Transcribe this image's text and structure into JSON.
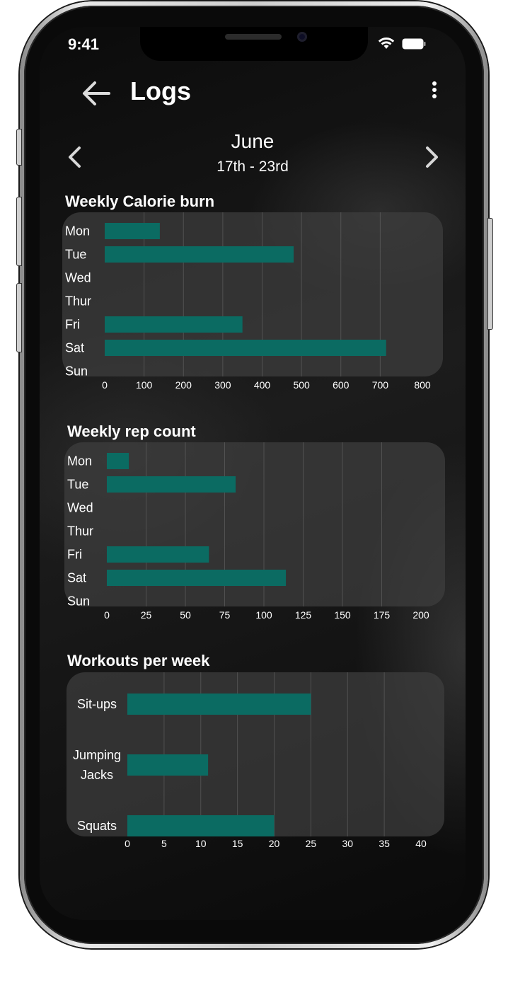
{
  "status_bar": {
    "time": "9:41"
  },
  "header": {
    "title": "Logs"
  },
  "week_nav": {
    "month": "June",
    "range": "17th - 23rd"
  },
  "colors": {
    "bar": "#0b6b62",
    "panel": "rgba(62,62,62,0.72)",
    "grid": "#6a6a6a"
  },
  "icons": [
    "back-arrow-icon",
    "more-vertical-icon",
    "chevron-left-icon",
    "chevron-right-icon",
    "wifi-icon",
    "battery-icon"
  ],
  "chart_data": [
    {
      "type": "bar",
      "orientation": "horizontal",
      "title": "Weekly Calorie burn",
      "categories": [
        "Mon",
        "Tue",
        "Wed",
        "Thur",
        "Fri",
        "Sat",
        "Sun"
      ],
      "values": [
        140,
        480,
        0,
        0,
        350,
        715,
        0
      ],
      "xlim": [
        0,
        800
      ],
      "ticks": [
        "0",
        "100",
        "200",
        "300",
        "400",
        "500",
        "600",
        "700",
        "800"
      ],
      "grid": true
    },
    {
      "type": "bar",
      "orientation": "horizontal",
      "title": "Weekly rep count",
      "categories": [
        "Mon",
        "Tue",
        "Wed",
        "Thur",
        "Fri",
        "Sat",
        "Sun"
      ],
      "values": [
        14,
        82,
        0,
        0,
        65,
        114,
        0
      ],
      "xlim": [
        0,
        200
      ],
      "ticks": [
        "0",
        "25",
        "50",
        "75",
        "100",
        "125",
        "150",
        "175",
        "200"
      ],
      "grid": true
    },
    {
      "type": "bar",
      "orientation": "horizontal",
      "title": "Workouts per week",
      "categories": [
        "Sit-ups",
        "Jumping Jacks",
        "Squats"
      ],
      "values": [
        25,
        11,
        20
      ],
      "xlim": [
        0,
        40
      ],
      "ticks": [
        "0",
        "5",
        "10",
        "15",
        "20",
        "25",
        "30",
        "35",
        "40"
      ],
      "grid": true
    }
  ]
}
